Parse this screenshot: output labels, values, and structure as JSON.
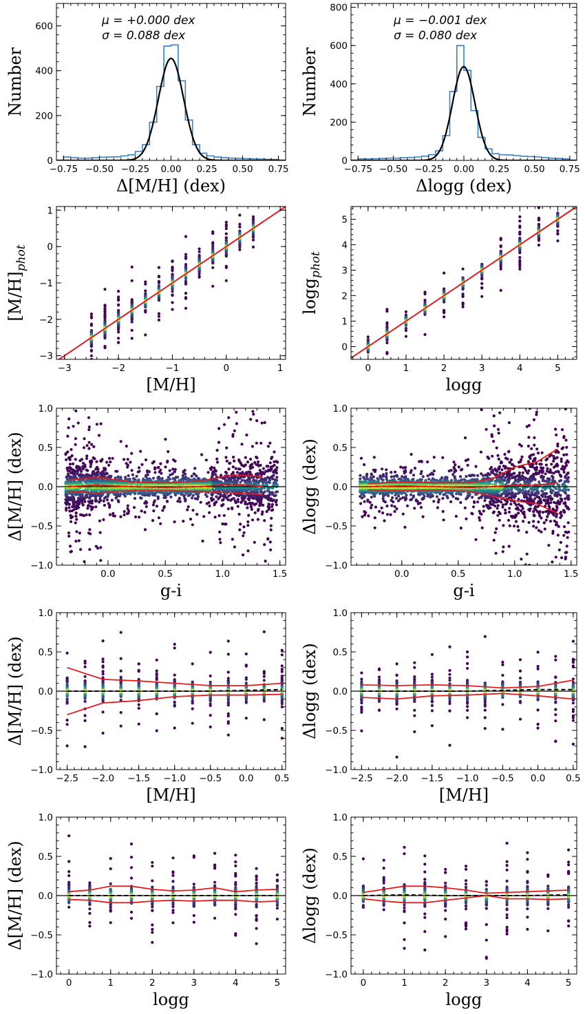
{
  "chart_data": [
    {
      "id": "hist-mh",
      "type": "histogram",
      "xlabel": "Δ[M/H] (dex)",
      "ylabel": "Number",
      "xlim": [
        -0.8,
        0.8
      ],
      "ylim": [
        0,
        700
      ],
      "xticks": [
        -0.75,
        -0.5,
        -0.25,
        0.0,
        0.25,
        0.5,
        0.75
      ],
      "yticks": [
        0,
        200,
        400,
        600
      ],
      "annotations": [
        "μ = +0.000 dex",
        "σ = 0.088 dex"
      ],
      "gaussian": {
        "mu": 0.0,
        "sigma": 0.088,
        "amplitude": 455
      },
      "bins": [
        -0.75,
        -0.7,
        -0.65,
        -0.6,
        -0.55,
        -0.5,
        -0.45,
        -0.4,
        -0.35,
        -0.3,
        -0.25,
        -0.2,
        -0.15,
        -0.1,
        -0.05,
        0.0,
        0.05,
        0.1,
        0.15,
        0.2,
        0.25,
        0.3,
        0.35,
        0.4,
        0.45,
        0.5,
        0.55,
        0.6,
        0.65,
        0.7,
        0.75
      ],
      "counts": [
        15,
        12,
        10,
        10,
        12,
        14,
        15,
        16,
        20,
        25,
        40,
        70,
        170,
        330,
        510,
        515,
        355,
        180,
        70,
        32,
        20,
        15,
        12,
        10,
        9,
        8,
        7,
        6,
        5,
        4
      ]
    },
    {
      "id": "hist-logg",
      "type": "histogram",
      "xlabel": "Δlogg (dex)",
      "ylabel": "Number",
      "xlim": [
        -0.8,
        0.8
      ],
      "ylim": [
        0,
        820
      ],
      "xticks": [
        -0.75,
        -0.5,
        -0.25,
        0.0,
        0.25,
        0.5,
        0.75
      ],
      "yticks": [
        0,
        200,
        400,
        600,
        800
      ],
      "annotations": [
        "μ = −0.001 dex",
        "σ = 0.080 dex"
      ],
      "gaussian": {
        "mu": -0.001,
        "sigma": 0.08,
        "amplitude": 490
      },
      "bins": [
        -0.75,
        -0.7,
        -0.65,
        -0.6,
        -0.55,
        -0.5,
        -0.45,
        -0.4,
        -0.35,
        -0.3,
        -0.25,
        -0.2,
        -0.15,
        -0.1,
        -0.05,
        0.0,
        0.05,
        0.1,
        0.15,
        0.2,
        0.25,
        0.3,
        0.35,
        0.4,
        0.45,
        0.5,
        0.55,
        0.6,
        0.65,
        0.7,
        0.75
      ],
      "counts": [
        8,
        8,
        9,
        10,
        12,
        12,
        14,
        15,
        18,
        22,
        30,
        50,
        130,
        360,
        600,
        470,
        260,
        120,
        60,
        35,
        30,
        28,
        25,
        22,
        20,
        18,
        15,
        12,
        10,
        8
      ]
    },
    {
      "id": "sc-mh",
      "type": "scatter",
      "xlabel": "[M/H]",
      "ylabel": "[M/H]_phot",
      "xlim": [
        -3.15,
        1.1
      ],
      "ylim": [
        -3.1,
        1.1
      ],
      "xticks": [
        -3,
        -2,
        -1,
        0,
        1
      ],
      "yticks": [
        -3,
        -2,
        -1,
        0,
        1
      ],
      "x_groups": [
        -2.5,
        -2.25,
        -2.0,
        -1.75,
        -1.5,
        -1.25,
        -1.0,
        -0.75,
        -0.5,
        -0.25,
        0.0,
        0.25,
        0.5
      ],
      "one_to_one_line": true
    },
    {
      "id": "sc-logg",
      "type": "scatter",
      "xlabel": "logg",
      "ylabel": "logg_phot",
      "xlim": [
        -0.45,
        5.5
      ],
      "ylim": [
        -0.5,
        5.5
      ],
      "xticks": [
        0,
        1,
        2,
        3,
        4,
        5
      ],
      "yticks": [
        0,
        1,
        2,
        3,
        4,
        5
      ],
      "x_groups": [
        0,
        0.5,
        1.0,
        1.5,
        2.0,
        2.5,
        3.0,
        3.5,
        4.0,
        4.5,
        5.0
      ],
      "one_to_one_line": true
    },
    {
      "id": "res-gi-mh",
      "type": "scatter",
      "xlabel": "g-i",
      "ylabel": "Δ[M/H] (dex)",
      "xlim": [
        -0.45,
        1.55
      ],
      "ylim": [
        -1.0,
        1.0
      ],
      "xticks": [
        0.0,
        0.5,
        1.0,
        1.5
      ],
      "yticks": [
        -1.0,
        -0.5,
        0.0,
        0.5,
        1.0
      ],
      "median": [
        [
          -0.35,
          0.0
        ],
        [
          -0.1,
          0.02
        ],
        [
          0.2,
          0.0
        ],
        [
          0.5,
          -0.01
        ],
        [
          0.8,
          0.0
        ],
        [
          1.1,
          0.03
        ],
        [
          1.35,
          0.0
        ]
      ],
      "upper": [
        [
          -0.35,
          0.08
        ],
        [
          -0.1,
          0.12
        ],
        [
          0.2,
          0.06
        ],
        [
          0.5,
          0.05
        ],
        [
          0.8,
          0.07
        ],
        [
          1.1,
          0.15
        ],
        [
          1.35,
          0.13
        ]
      ],
      "lower": [
        [
          -0.35,
          -0.06
        ],
        [
          -0.1,
          -0.08
        ],
        [
          0.2,
          -0.05
        ],
        [
          0.5,
          -0.05
        ],
        [
          0.8,
          -0.06
        ],
        [
          1.1,
          -0.08
        ],
        [
          1.35,
          -0.1
        ]
      ]
    },
    {
      "id": "res-gi-logg",
      "type": "scatter",
      "xlabel": "g-i",
      "ylabel": "Δlogg (dex)",
      "xlim": [
        -0.45,
        1.55
      ],
      "ylim": [
        -1.0,
        1.0
      ],
      "xticks": [
        0.0,
        0.5,
        1.0,
        1.5
      ],
      "yticks": [
        -1.0,
        -0.5,
        0.0,
        0.5,
        1.0
      ],
      "median": [
        [
          -0.3,
          0.0
        ],
        [
          0.0,
          0.01
        ],
        [
          0.3,
          0.0
        ],
        [
          0.6,
          -0.01
        ],
        [
          0.8,
          0.0
        ],
        [
          1.0,
          0.02
        ],
        [
          1.2,
          0.02
        ],
        [
          1.38,
          0.05
        ]
      ],
      "upper": [
        [
          -0.3,
          0.04
        ],
        [
          0.0,
          0.06
        ],
        [
          0.3,
          0.05
        ],
        [
          0.6,
          0.05
        ],
        [
          0.8,
          0.1
        ],
        [
          1.0,
          0.25
        ],
        [
          1.2,
          0.32
        ],
        [
          1.38,
          0.48
        ]
      ],
      "lower": [
        [
          -0.3,
          -0.04
        ],
        [
          0.0,
          -0.05
        ],
        [
          0.3,
          -0.04
        ],
        [
          0.6,
          -0.06
        ],
        [
          0.8,
          -0.12
        ],
        [
          1.0,
          -0.18
        ],
        [
          1.2,
          -0.22
        ],
        [
          1.38,
          -0.34
        ]
      ]
    },
    {
      "id": "res-mh-mh",
      "type": "scatter",
      "xlabel": "[M/H]",
      "ylabel": "Δ[M/H] (dex)",
      "xlim": [
        -2.65,
        0.55
      ],
      "ylim": [
        -1.0,
        1.0
      ],
      "xticks": [
        -2.5,
        -2.0,
        -1.5,
        -1.0,
        -0.5,
        0.0,
        0.5
      ],
      "yticks": [
        -1.0,
        -0.5,
        0.0,
        0.5,
        1.0
      ],
      "x_groups": [
        -2.5,
        -2.25,
        -2.0,
        -1.75,
        -1.5,
        -1.25,
        -1.0,
        -0.75,
        -0.5,
        -0.25,
        0.0,
        0.25,
        0.5
      ],
      "median": [
        [
          -2.5,
          0.0
        ],
        [
          -2.0,
          0.0
        ],
        [
          -1.5,
          0.0
        ],
        [
          -1.0,
          0.0
        ],
        [
          -0.5,
          0.0
        ],
        [
          0.0,
          0.01
        ],
        [
          0.5,
          0.02
        ]
      ],
      "upper": [
        [
          -2.5,
          0.3
        ],
        [
          -2.0,
          0.15
        ],
        [
          -1.5,
          0.13
        ],
        [
          -1.0,
          0.1
        ],
        [
          -0.5,
          0.07
        ],
        [
          0.0,
          0.07
        ],
        [
          0.5,
          0.1
        ]
      ],
      "lower": [
        [
          -2.5,
          -0.3
        ],
        [
          -2.0,
          -0.15
        ],
        [
          -1.5,
          -0.12
        ],
        [
          -1.0,
          -0.07
        ],
        [
          -0.5,
          -0.05
        ],
        [
          0.0,
          -0.05
        ],
        [
          0.5,
          -0.04
        ]
      ]
    },
    {
      "id": "res-mh-logg",
      "type": "scatter",
      "xlabel": "[M/H]",
      "ylabel": "Δlogg (dex)",
      "xlim": [
        -2.65,
        0.55
      ],
      "ylim": [
        -1.0,
        1.0
      ],
      "xticks": [
        -2.5,
        -2.0,
        -1.5,
        -1.0,
        -0.5,
        0.0,
        0.5
      ],
      "yticks": [
        -1.0,
        -0.5,
        0.0,
        0.5,
        1.0
      ],
      "x_groups": [
        -2.5,
        -2.25,
        -2.0,
        -1.75,
        -1.5,
        -1.25,
        -1.0,
        -0.75,
        -0.5,
        -0.25,
        0.0,
        0.25,
        0.5
      ],
      "median": [
        [
          -2.5,
          0.0
        ],
        [
          -2.0,
          0.0
        ],
        [
          -1.5,
          0.0
        ],
        [
          -1.0,
          0.0
        ],
        [
          -0.5,
          0.01
        ],
        [
          0.0,
          0.02
        ],
        [
          0.5,
          0.02
        ]
      ],
      "upper": [
        [
          -2.5,
          0.08
        ],
        [
          -2.0,
          0.07
        ],
        [
          -1.5,
          0.08
        ],
        [
          -1.0,
          0.07
        ],
        [
          -0.5,
          0.04
        ],
        [
          0.0,
          0.06
        ],
        [
          0.5,
          0.14
        ]
      ],
      "lower": [
        [
          -2.5,
          -0.08
        ],
        [
          -2.0,
          -0.1
        ],
        [
          -1.5,
          -0.06
        ],
        [
          -1.0,
          -0.05
        ],
        [
          -0.5,
          -0.03
        ],
        [
          0.0,
          -0.06
        ],
        [
          0.5,
          -0.1
        ]
      ]
    },
    {
      "id": "res-logg-mh",
      "type": "scatter",
      "xlabel": "logg",
      "ylabel": "Δ[M/H] (dex)",
      "xlim": [
        -0.3,
        5.2
      ],
      "ylim": [
        -1.0,
        1.0
      ],
      "xticks": [
        0,
        1,
        2,
        3,
        4,
        5
      ],
      "yticks": [
        -1.0,
        -0.5,
        0.0,
        0.5,
        1.0
      ],
      "x_groups": [
        0,
        0.5,
        1.0,
        1.5,
        2.0,
        2.5,
        3.0,
        3.5,
        4.0,
        4.5,
        5.0
      ],
      "median": [
        [
          0,
          0.0
        ],
        [
          1,
          0.0
        ],
        [
          2,
          0.0
        ],
        [
          3,
          0.0
        ],
        [
          4,
          0.0
        ],
        [
          5,
          0.0
        ]
      ],
      "upper": [
        [
          0,
          0.05
        ],
        [
          0.5,
          0.07
        ],
        [
          1,
          0.12
        ],
        [
          1.5,
          0.12
        ],
        [
          2,
          0.08
        ],
        [
          2.5,
          0.06
        ],
        [
          3,
          0.07
        ],
        [
          3.5,
          0.1
        ],
        [
          4,
          0.05
        ],
        [
          4.5,
          0.07
        ],
        [
          5,
          0.08
        ]
      ],
      "lower": [
        [
          0,
          -0.05
        ],
        [
          0.5,
          -0.06
        ],
        [
          1,
          -0.09
        ],
        [
          1.5,
          -0.09
        ],
        [
          2,
          -0.07
        ],
        [
          2.5,
          -0.06
        ],
        [
          3,
          -0.07
        ],
        [
          3.5,
          -0.06
        ],
        [
          4,
          -0.06
        ],
        [
          4.5,
          -0.08
        ],
        [
          5,
          -0.07
        ]
      ]
    },
    {
      "id": "res-logg-logg",
      "type": "scatter",
      "xlabel": "logg",
      "ylabel": "Δlogg (dex)",
      "xlim": [
        -0.3,
        5.2
      ],
      "ylim": [
        -1.0,
        1.0
      ],
      "xticks": [
        0,
        1,
        2,
        3,
        4,
        5
      ],
      "yticks": [
        -1.0,
        -0.5,
        0.0,
        0.5,
        1.0
      ],
      "x_groups": [
        0,
        0.5,
        1.0,
        1.5,
        2.0,
        2.5,
        3.0,
        3.5,
        4.0,
        4.5,
        5.0
      ],
      "median": [
        [
          0,
          0.0
        ],
        [
          1,
          0.01
        ],
        [
          2,
          0.0
        ],
        [
          3,
          0.0
        ],
        [
          4,
          0.0
        ],
        [
          5,
          0.01
        ]
      ],
      "upper": [
        [
          0,
          0.04
        ],
        [
          0.5,
          0.08
        ],
        [
          1,
          0.12
        ],
        [
          1.5,
          0.12
        ],
        [
          2,
          0.1
        ],
        [
          2.5,
          0.07
        ],
        [
          3,
          0.03
        ],
        [
          3.5,
          0.04
        ],
        [
          4,
          0.05
        ],
        [
          4.5,
          0.06
        ],
        [
          5,
          0.07
        ]
      ],
      "lower": [
        [
          0,
          -0.04
        ],
        [
          0.5,
          -0.07
        ],
        [
          1,
          -0.09
        ],
        [
          1.5,
          -0.09
        ],
        [
          2,
          -0.06
        ],
        [
          2.5,
          -0.03
        ],
        [
          3,
          0.0
        ],
        [
          3.5,
          -0.04
        ],
        [
          4,
          -0.04
        ],
        [
          4.5,
          -0.05
        ],
        [
          5,
          -0.04
        ]
      ]
    }
  ],
  "colors": {
    "histogram": "#3a7fc0",
    "gaussian": "#000000",
    "trend_lines": "#e41a1c",
    "zero_line": "#000000",
    "density_low": "#440154",
    "density_mid": "#21918c",
    "density_high": "#fde725"
  }
}
